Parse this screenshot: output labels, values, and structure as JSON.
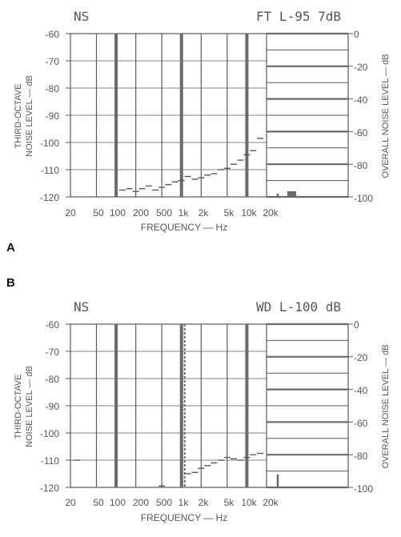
{
  "colors": {
    "ink": "#5a5a5a",
    "heavy": "#6a6a6a",
    "background": "#ffffff"
  },
  "chart_data": [
    {
      "type": "bar",
      "panel_letter": "A",
      "title_left": "NS",
      "title_right": "FT L-95 7dB",
      "xlabel": "FREQUENCY — Hz",
      "ylabel_left": [
        "THIRD-OCTAVE",
        "NOISE LEVEL — dB"
      ],
      "ylabel_right": "OVERALL NOISE LEVEL — dB",
      "x_scale": "log",
      "x_range": [
        20,
        20000
      ],
      "x_ticks": [
        {
          "value": 20,
          "label": "20"
        },
        {
          "value": 50,
          "label": "50"
        },
        {
          "value": 100,
          "label": "100"
        },
        {
          "value": 200,
          "label": "200"
        },
        {
          "value": 500,
          "label": "500"
        },
        {
          "value": 1000,
          "label": "1k"
        },
        {
          "value": 2000,
          "label": "2k"
        },
        {
          "value": 5000,
          "label": "5k"
        },
        {
          "value": 10000,
          "label": "10k"
        },
        {
          "value": 20000,
          "label": "20k"
        }
      ],
      "ylim": [
        -120,
        -60
      ],
      "y_ticks_left": [
        "-60",
        "-70",
        "-80",
        "-90",
        "-100",
        "-110",
        "-120"
      ],
      "y_ticks_right": [
        "0",
        "-20",
        "-40",
        "-60",
        "-80",
        "-100"
      ],
      "heavy_gridlines_hz": [
        100,
        1000,
        10000
      ],
      "third_octave_levels": [
        {
          "freq": 125,
          "level": -117.5
        },
        {
          "freq": 160,
          "level": -117.0
        },
        {
          "freq": 200,
          "level": -118.0
        },
        {
          "freq": 250,
          "level": -117.0
        },
        {
          "freq": 315,
          "level": -116.0
        },
        {
          "freq": 400,
          "level": -117.5
        },
        {
          "freq": 500,
          "level": -116.5
        },
        {
          "freq": 630,
          "level": -115.5
        },
        {
          "freq": 800,
          "level": -114.5
        },
        {
          "freq": 1000,
          "level": -114.0
        },
        {
          "freq": 1250,
          "level": -112.5
        },
        {
          "freq": 1600,
          "level": -113.5
        },
        {
          "freq": 2000,
          "level": -113.0
        },
        {
          "freq": 2500,
          "level": -112.0
        },
        {
          "freq": 3150,
          "level": -111.5
        },
        {
          "freq": 4000,
          "level": -110.0
        },
        {
          "freq": 5000,
          "level": -109.5
        },
        {
          "freq": 6300,
          "level": -108.0
        },
        {
          "freq": 8000,
          "level": -106.5
        },
        {
          "freq": 10000,
          "level": -104.5
        },
        {
          "freq": 12500,
          "level": -103.0
        },
        {
          "freq": 16000,
          "level": -98.5
        }
      ],
      "overall_bar_right_db": -98
    },
    {
      "type": "bar",
      "panel_letter": "B",
      "title_left": "NS",
      "title_right": "WD L-100 dB",
      "xlabel": "FREQUENCY — Hz",
      "ylabel_left": [
        "THIRD-OCTAVE",
        "NOISE LEVEL — dB"
      ],
      "ylabel_right": "OVERALL NOISE LEVEL — dB",
      "x_scale": "log",
      "x_range": [
        20,
        20000
      ],
      "x_ticks": [
        {
          "value": 20,
          "label": "20"
        },
        {
          "value": 50,
          "label": "50"
        },
        {
          "value": 100,
          "label": "100"
        },
        {
          "value": 200,
          "label": "200"
        },
        {
          "value": 500,
          "label": "500"
        },
        {
          "value": 1000,
          "label": "1k"
        },
        {
          "value": 2000,
          "label": "2k"
        },
        {
          "value": 5000,
          "label": "5k"
        },
        {
          "value": 10000,
          "label": "10k"
        },
        {
          "value": 20000,
          "label": "20k"
        }
      ],
      "ylim": [
        -120,
        -60
      ],
      "y_ticks_left": [
        "-60",
        "-70",
        "-80",
        "-90",
        "-100",
        "-110",
        "-120"
      ],
      "y_ticks_right": [
        "0",
        "-20",
        "-40",
        "-60",
        "-80",
        "-100"
      ],
      "heavy_gridlines_hz": [
        100,
        1000,
        10000
      ],
      "third_octave_levels": [
        {
          "freq": 25,
          "level": -110.0
        },
        {
          "freq": 500,
          "level": -119.5
        },
        {
          "freq": 1250,
          "level": -115.0
        },
        {
          "freq": 1600,
          "level": -114.5
        },
        {
          "freq": 2000,
          "level": -113.0
        },
        {
          "freq": 2500,
          "level": -112.0
        },
        {
          "freq": 3150,
          "level": -111.0
        },
        {
          "freq": 4000,
          "level": -110.0
        },
        {
          "freq": 5000,
          "level": -109.0
        },
        {
          "freq": 6300,
          "level": -109.5
        },
        {
          "freq": 8000,
          "level": -110.0
        },
        {
          "freq": 10000,
          "level": -109.0
        },
        {
          "freq": 12500,
          "level": -108.0
        },
        {
          "freq": 16000,
          "level": -107.5
        }
      ],
      "overall_bar_right_db": -92
    }
  ]
}
